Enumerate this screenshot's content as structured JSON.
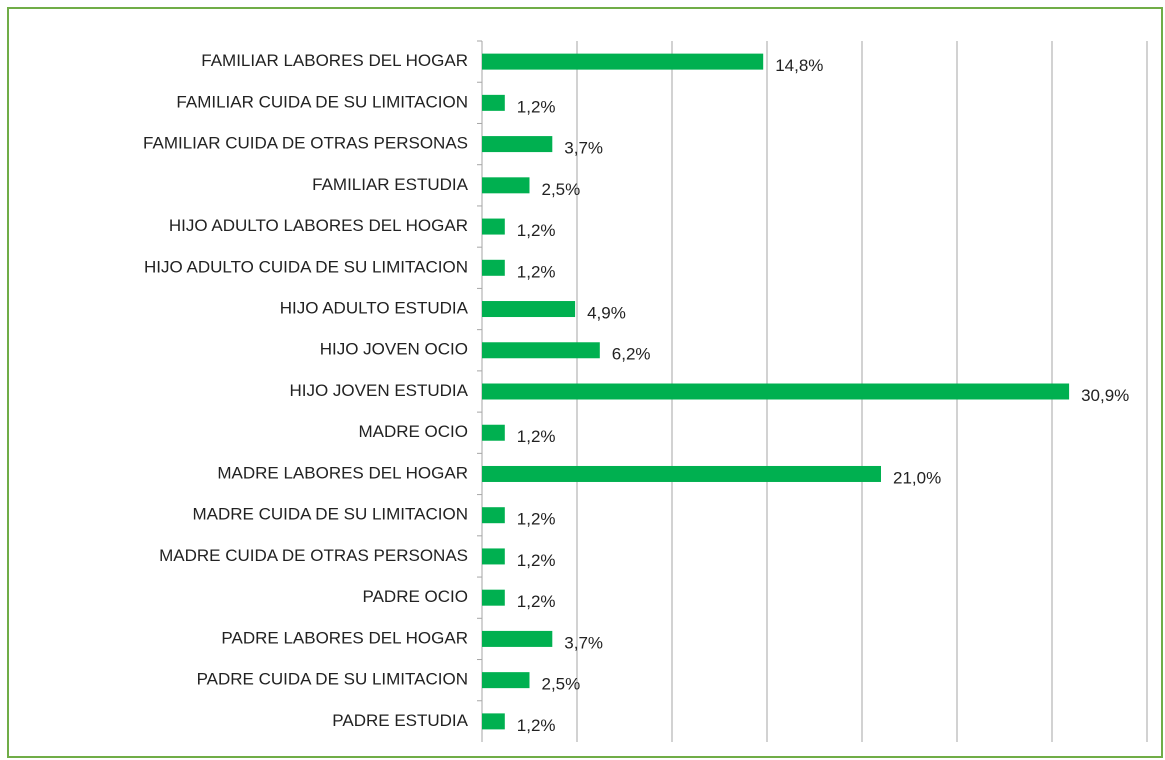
{
  "chart_data": {
    "type": "bar",
    "orientation": "horizontal",
    "categories": [
      "FAMILIAR LABORES DEL HOGAR",
      "FAMILIAR CUIDA DE SU LIMITACION",
      "FAMILIAR CUIDA DE OTRAS PERSONAS",
      "FAMILIAR ESTUDIA",
      "HIJO ADULTO LABORES DEL HOGAR",
      "HIJO ADULTO CUIDA DE SU LIMITACION",
      "HIJO ADULTO ESTUDIA",
      "HIJO JOVEN OCIO",
      "HIJO JOVEN ESTUDIA",
      "MADRE OCIO",
      "MADRE LABORES DEL HOGAR",
      "MADRE CUIDA DE SU LIMITACION",
      "MADRE CUIDA DE OTRAS PERSONAS",
      "PADRE OCIO",
      "PADRE LABORES DEL HOGAR",
      "PADRE CUIDA DE SU LIMITACION",
      "PADRE ESTUDIA"
    ],
    "values": [
      14.8,
      1.2,
      3.7,
      2.5,
      1.2,
      1.2,
      4.9,
      6.2,
      30.9,
      1.2,
      21.0,
      1.2,
      1.2,
      1.2,
      3.7,
      2.5,
      1.2
    ],
    "value_labels": [
      "14,8%",
      "1,2%",
      "3,7%",
      "2,5%",
      "1,2%",
      "1,2%",
      "4,9%",
      "6,2%",
      "30,9%",
      "1,2%",
      "21,0%",
      "1,2%",
      "1,2%",
      "1,2%",
      "3,7%",
      "2,5%",
      "1,2%"
    ],
    "color": "#00b050",
    "xlim": [
      0,
      35
    ],
    "xticks": [
      0,
      5,
      10,
      15,
      20,
      25,
      30,
      35
    ],
    "grid": true
  }
}
